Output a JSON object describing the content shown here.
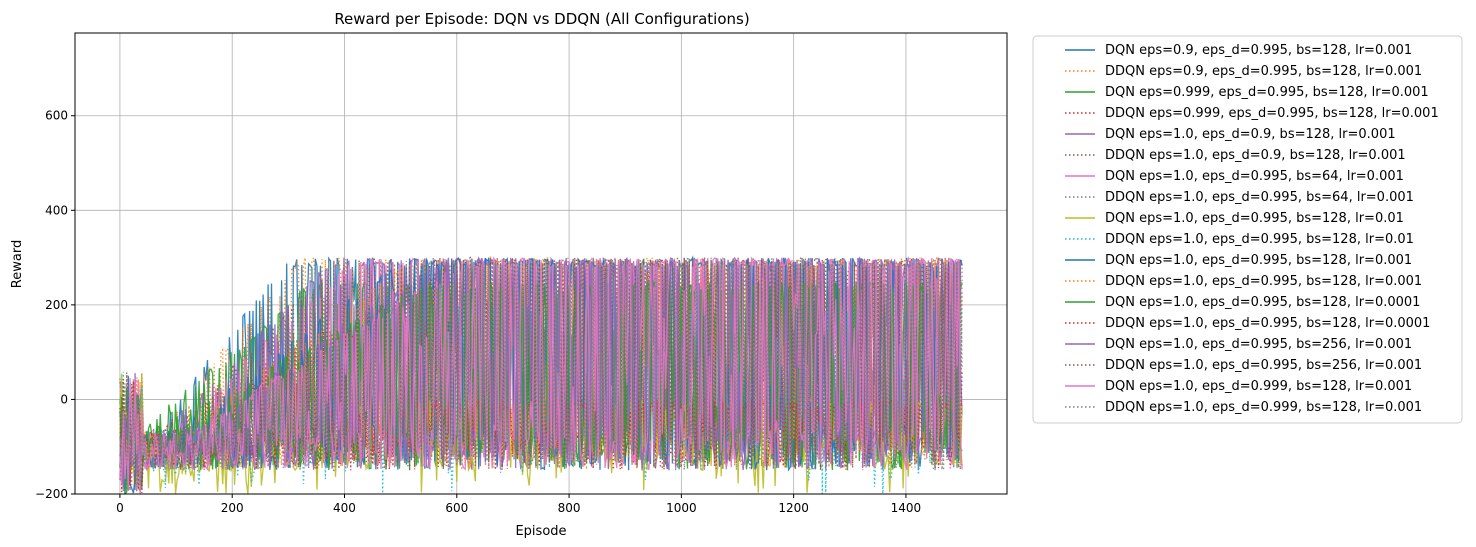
{
  "chart_data": {
    "type": "line",
    "title": "Reward per Episode: DQN vs DDQN (All Configurations)",
    "xlabel": "Episode",
    "ylabel": "Reward",
    "xlim": [
      -80,
      1580
    ],
    "ylim": [
      -200,
      775
    ],
    "xticks": [
      0,
      200,
      400,
      600,
      800,
      1000,
      1200,
      1400
    ],
    "yticks": [
      -200,
      0,
      200,
      400,
      600
    ],
    "grid": true,
    "legend_position": "outside-right",
    "episodes": 1500,
    "series": [
      {
        "name": "DQN eps=0.9, eps_d=0.995, bs=128, lr=0.001",
        "color": "#1f77b4",
        "dash": "solid",
        "approx_final_high": 300,
        "approx_low": -150
      },
      {
        "name": "DDQN eps=0.9, eps_d=0.995, bs=128, lr=0.001",
        "color": "#ff7f0e",
        "dash": "dotted",
        "approx_final_high": 300,
        "approx_low": -150
      },
      {
        "name": "DQN eps=0.999, eps_d=0.995, bs=128, lr=0.001",
        "color": "#2ca02c",
        "dash": "solid",
        "approx_final_high": 250,
        "approx_low": -100
      },
      {
        "name": "DDQN eps=0.999, eps_d=0.995, bs=128, lr=0.001",
        "color": "#d62728",
        "dash": "dotted",
        "approx_final_high": 150,
        "approx_low": -100
      },
      {
        "name": "DQN eps=1.0, eps_d=0.9, bs=128, lr=0.001",
        "color": "#9467bd",
        "dash": "solid",
        "approx_final_high": 300,
        "approx_low": -150
      },
      {
        "name": "DDQN eps=1.0, eps_d=0.9, bs=128, lr=0.001",
        "color": "#8c564b",
        "dash": "dotted",
        "approx_final_high": 300,
        "approx_low": -150
      },
      {
        "name": "DQN eps=1.0, eps_d=0.995, bs=64, lr=0.001",
        "color": "#e377c2",
        "dash": "solid",
        "approx_final_high": 300,
        "approx_low": -150
      },
      {
        "name": "DDQN eps=1.0, eps_d=0.995, bs=64, lr=0.001",
        "color": "#7f7f7f",
        "dash": "dotted",
        "approx_final_high": 300,
        "approx_low": -150
      },
      {
        "name": "DQN eps=1.0, eps_d=0.995, bs=128, lr=0.01",
        "color": "#bcbd22",
        "dash": "solid",
        "approx_final_high": 0,
        "approx_low": -200
      },
      {
        "name": "DDQN eps=1.0, eps_d=0.995, bs=128, lr=0.01",
        "color": "#17becf",
        "dash": "dotted",
        "approx_final_high": 200,
        "approx_low": -200
      },
      {
        "name": "DQN eps=1.0, eps_d=0.995, bs=128, lr=0.001",
        "color": "#1f77b4",
        "dash": "solid",
        "approx_final_high": 300,
        "approx_low": -150
      },
      {
        "name": "DDQN eps=1.0, eps_d=0.995, bs=128, lr=0.001",
        "color": "#ff7f0e",
        "dash": "dotted",
        "approx_final_high": 300,
        "approx_low": -150
      },
      {
        "name": "DQN eps=1.0, eps_d=0.995, bs=128, lr=0.0001",
        "color": "#2ca02c",
        "dash": "solid",
        "approx_final_high": 250,
        "approx_low": -100
      },
      {
        "name": "DDQN eps=1.0, eps_d=0.995, bs=128, lr=0.0001",
        "color": "#d62728",
        "dash": "dotted",
        "approx_final_high": 0,
        "approx_low": -120
      },
      {
        "name": "DQN eps=1.0, eps_d=0.995, bs=256, lr=0.001",
        "color": "#9467bd",
        "dash": "solid",
        "approx_final_high": 300,
        "approx_low": -150
      },
      {
        "name": "DDQN eps=1.0, eps_d=0.995, bs=256, lr=0.001",
        "color": "#8c564b",
        "dash": "dotted",
        "approx_final_high": 300,
        "approx_low": -150
      },
      {
        "name": "DQN eps=1.0, eps_d=0.999, bs=128, lr=0.001",
        "color": "#e377c2",
        "dash": "solid",
        "approx_final_high": 300,
        "approx_low": -150
      },
      {
        "name": "DDQN eps=1.0, eps_d=0.999, bs=128, lr=0.001",
        "color": "#7f7f7f",
        "dash": "dotted",
        "approx_final_high": 300,
        "approx_low": -150
      }
    ]
  }
}
